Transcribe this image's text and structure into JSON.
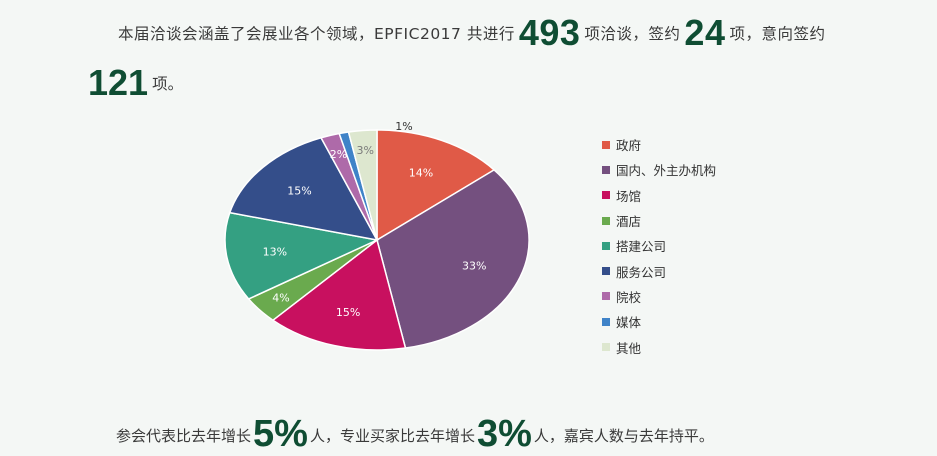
{
  "intro": {
    "text_a": "本届洽谈会涵盖了会展业各个领域，EPFIC2017 共进行",
    "num_a": "493",
    "text_b": "项洽谈，签约",
    "num_b": "24",
    "text_c": "项，意向签约",
    "num_c": "121",
    "text_d": "项。"
  },
  "bottom": {
    "text_a": "参会代表比去年增长",
    "num_a": "5%",
    "text_b": "人，专业买家比去年增长",
    "num_b": "3%",
    "text_c": "人，嘉宾人数与去年持平。"
  },
  "chart_data": {
    "type": "pie",
    "slices": [
      {
        "label": "政府",
        "value": 14,
        "value_label": "14%",
        "color": "#e05a47"
      },
      {
        "label": "国内、外主办机构",
        "value": 33,
        "value_label": "33%",
        "color": "#74507f"
      },
      {
        "label": "场馆",
        "value": 15,
        "value_label": "15%",
        "color": "#c8105f"
      },
      {
        "label": "酒店",
        "value": 4,
        "value_label": "4%",
        "color": "#6aaa4e"
      },
      {
        "label": "搭建公司",
        "value": 13,
        "value_label": "13%",
        "color": "#34a082"
      },
      {
        "label": "服务公司",
        "value": 15,
        "value_label": "15%",
        "color": "#344e8a"
      },
      {
        "label": "院校",
        "value": 2,
        "value_label": "2%",
        "color": "#ae6aa9"
      },
      {
        "label": "媒体",
        "value": 1,
        "value_label": "1%",
        "color": "#3f83c8"
      },
      {
        "label": "其他",
        "value": 3,
        "value_label": "3%",
        "color": "#dde7cf"
      }
    ],
    "legend_position": "right"
  }
}
